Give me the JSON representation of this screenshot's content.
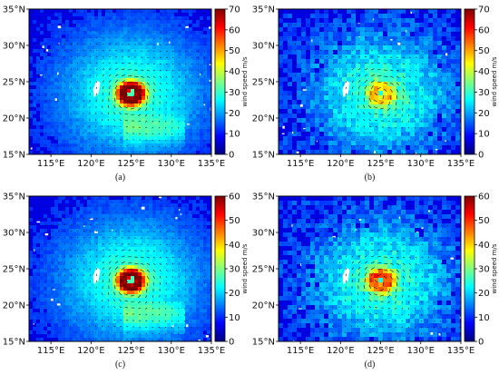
{
  "figure": {
    "lat_labels": [
      "35°N",
      "30°N",
      "25°N",
      "20°N",
      "15°N"
    ],
    "lon_labels": [
      "115°E",
      "120°E",
      "125°E",
      "130°E",
      "135°E"
    ],
    "colorbar_label": "wind speed m/s",
    "panels": [
      {
        "id": "a",
        "label": "(a)",
        "cbar_ticks": [
          "70",
          "60",
          "50",
          "40",
          "30",
          "20",
          "10",
          "0"
        ],
        "cbar_max": 70,
        "typhoon_peak": 0.98,
        "style": "smooth"
      },
      {
        "id": "b",
        "label": "(b)",
        "cbar_ticks": [
          "70",
          "60",
          "50",
          "40",
          "30",
          "20",
          "10",
          "0"
        ],
        "cbar_max": 70,
        "typhoon_peak": 0.6,
        "style": "patchy"
      },
      {
        "id": "c",
        "label": "(c)",
        "cbar_ticks": [
          "60",
          "50",
          "40",
          "30",
          "20",
          "10",
          "0"
        ],
        "cbar_max": 60,
        "typhoon_peak": 0.95,
        "style": "smooth"
      },
      {
        "id": "d",
        "label": "(d)",
        "cbar_ticks": [
          "60",
          "50",
          "40",
          "30",
          "20",
          "10",
          "0"
        ],
        "cbar_max": 60,
        "typhoon_peak": 0.75,
        "style": "patchy"
      }
    ],
    "colormap": [
      "#00007f",
      "#0000ff",
      "#007fff",
      "#00ffff",
      "#7fff7f",
      "#ffff00",
      "#ff7f00",
      "#ff0000",
      "#7f0000"
    ]
  }
}
